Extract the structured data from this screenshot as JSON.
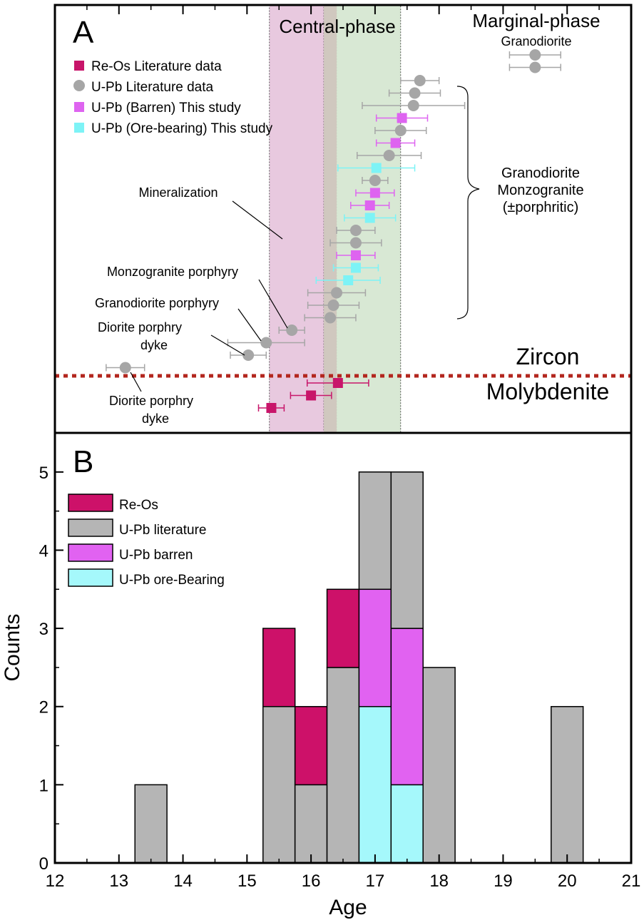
{
  "chart_data": [
    {
      "panel": "A",
      "type": "scatter",
      "panel_label": "A",
      "xlim": [
        12,
        21
      ],
      "shaded_bands": [
        {
          "label": "Central-phase",
          "from": 15.35,
          "to": 16.4,
          "color": "#e6c3dc"
        },
        {
          "label": "",
          "from": 16.2,
          "to": 17.4,
          "color": "#d4e6cf"
        }
      ],
      "legend": [
        {
          "label": "Re-Os Literature data",
          "marker": "square",
          "color": "#c8156a"
        },
        {
          "label": "U-Pb Literature data",
          "marker": "circle",
          "color": "#a6a6a6"
        },
        {
          "label": "U-Pb (Barren) This study",
          "marker": "square",
          "color": "#de64f0"
        },
        {
          "label": "U-Pb (Ore-bearing) This study",
          "marker": "square",
          "color": "#7df3f6"
        }
      ],
      "divider_labels": {
        "upper": "Zircon",
        "lower": "Molybdenite"
      },
      "annotations": {
        "marginal_title": "Marginal-phase",
        "marginal_sub": "Granodiorite",
        "rock_types": [
          "Granodiorite",
          "Monzogranite",
          "(±porphritic)"
        ],
        "mineralization": "Mineralization",
        "monzogranite_porphyry": "Monzogranite porphyry",
        "granodiorite_porphyry": "Granodiorite porphyry",
        "diorite_dyke_upper": [
          "Diorite porphry",
          "dyke"
        ],
        "diorite_dyke_lower": [
          "Diorite porphry",
          "dyke"
        ]
      },
      "series": [
        {
          "name": "Re-Os Literature data",
          "marker": "square",
          "color": "#c8156a",
          "points": [
            {
              "x": 15.38,
              "err": 0.2
            },
            {
              "x": 16.0,
              "err": 0.32
            },
            {
              "x": 16.42,
              "err": 0.48
            }
          ]
        },
        {
          "name": "U-Pb Literature data",
          "marker": "circle",
          "color": "#a6a6a6",
          "points": [
            {
              "x": 13.1,
              "err": 0.3
            },
            {
              "x": 15.02,
              "err": 0.28
            },
            {
              "x": 15.3,
              "err": 0.6
            },
            {
              "x": 15.7,
              "err": 0.2
            },
            {
              "x": 16.3,
              "err": 0.4
            },
            {
              "x": 16.35,
              "err": 0.4
            },
            {
              "x": 16.4,
              "err": 0.45
            },
            {
              "x": 16.7,
              "err": 0.3
            },
            {
              "x": 16.7,
              "err": 0.4
            },
            {
              "x": 17.0,
              "err": 0.2
            },
            {
              "x": 17.22,
              "err": 0.5
            },
            {
              "x": 17.4,
              "err": 0.4
            },
            {
              "x": 17.6,
              "err": 0.8
            },
            {
              "x": 17.62,
              "err": 0.4
            },
            {
              "x": 17.7,
              "err": 0.3
            },
            {
              "x": 19.5,
              "err": 0.4
            },
            {
              "x": 19.5,
              "err": 0.4
            }
          ]
        },
        {
          "name": "U-Pb (Barren) This study",
          "marker": "square",
          "color": "#de64f0",
          "points": [
            {
              "x": 16.7,
              "err": 0.3
            },
            {
              "x": 16.92,
              "err": 0.3
            },
            {
              "x": 17.0,
              "err": 0.3
            },
            {
              "x": 17.32,
              "err": 0.3
            },
            {
              "x": 17.42,
              "err": 0.4
            }
          ]
        },
        {
          "name": "U-Pb (Ore-bearing) This study",
          "marker": "square",
          "color": "#7df3f6",
          "points": [
            {
              "x": 16.58,
              "err": 0.5
            },
            {
              "x": 16.7,
              "err": 0.35
            },
            {
              "x": 16.92,
              "err": 0.4
            },
            {
              "x": 17.02,
              "err": 0.6
            }
          ]
        }
      ]
    },
    {
      "panel": "B",
      "type": "bar",
      "panel_label": "B",
      "stacked": true,
      "xlabel": "Age",
      "ylabel": "Counts",
      "xlim": [
        12,
        21
      ],
      "ylim": [
        0,
        5.5
      ],
      "xticks": [
        "12",
        "13",
        "14",
        "15",
        "16",
        "17",
        "18",
        "19",
        "20",
        "21"
      ],
      "yticks": [
        "0",
        "1",
        "2",
        "3",
        "4",
        "5"
      ],
      "bin_width": 0.5,
      "bin_starts": [
        13.25,
        15.25,
        15.75,
        16.25,
        16.75,
        17.25,
        17.75,
        19.75
      ],
      "series": [
        {
          "name": "U-Pb ore-Bearing",
          "color": "#a5f8fb",
          "values": [
            0,
            0,
            0,
            0,
            2,
            1,
            0,
            0
          ]
        },
        {
          "name": "U-Pb barren",
          "color": "#e162f1",
          "values": [
            0,
            0,
            0,
            0,
            1.5,
            2,
            0,
            0
          ]
        },
        {
          "name": "U-Pb literature",
          "color": "#b5b5b5",
          "values": [
            1,
            2,
            1,
            2.5,
            1.5,
            2,
            2.5,
            2
          ]
        },
        {
          "name": "Re-Os",
          "color": "#cd1169",
          "values": [
            0,
            1,
            1,
            1,
            0,
            0,
            0,
            0
          ]
        }
      ],
      "legend_order": [
        "Re-Os",
        "U-Pb literature",
        "U-Pb barren",
        "U-Pb ore-Bearing"
      ]
    }
  ],
  "colors": {
    "divider": "#b3261e",
    "frame": "#000000"
  }
}
